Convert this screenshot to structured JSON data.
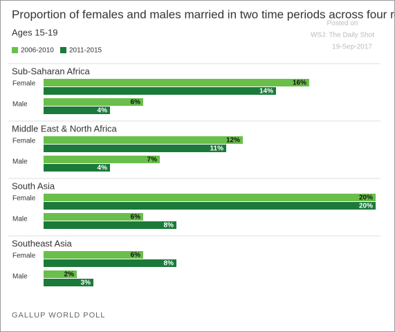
{
  "chart_data": {
    "type": "bar",
    "title": "Proportion of females and males married in two time periods across four regions",
    "subtitle": "Ages 15-19",
    "annotations": [
      "Posted on",
      "WSJ: The Daily Shot",
      "19-Sep-2017"
    ],
    "source": "GALLUP WORLD POLL",
    "xlim": [
      0,
      20
    ],
    "legend": [
      {
        "name": "2006-2010",
        "color": "#6abf4b"
      },
      {
        "name": "2011-2015",
        "color": "#1b7a3a"
      }
    ],
    "panels": [
      {
        "title": "Sub-Saharan Africa",
        "categories": [
          "Female",
          "Male"
        ],
        "series": [
          {
            "values": [
              16,
              6
            ],
            "value_labels": [
              "16%",
              "6%"
            ]
          },
          {
            "values": [
              14,
              4
            ],
            "value_labels": [
              "14%",
              "4%"
            ]
          }
        ]
      },
      {
        "title": "Middle East & North Africa",
        "categories": [
          "Female",
          "Male"
        ],
        "series": [
          {
            "values": [
              12,
              7
            ],
            "value_labels": [
              "12%",
              "7%"
            ]
          },
          {
            "values": [
              11,
              4
            ],
            "value_labels": [
              "11%",
              "4%"
            ]
          }
        ]
      },
      {
        "title": "South Asia",
        "categories": [
          "Female",
          "Male"
        ],
        "series": [
          {
            "values": [
              20,
              6
            ],
            "value_labels": [
              "20%",
              "6%"
            ]
          },
          {
            "values": [
              20,
              8
            ],
            "value_labels": [
              "20%",
              "8%"
            ]
          }
        ]
      },
      {
        "title": "Southeast Asia",
        "categories": [
          "Female",
          "Male"
        ],
        "series": [
          {
            "values": [
              6,
              2
            ],
            "value_labels": [
              "6%",
              "2%"
            ]
          },
          {
            "values": [
              8,
              3
            ],
            "value_labels": [
              "8%",
              "3%"
            ]
          }
        ]
      }
    ]
  }
}
